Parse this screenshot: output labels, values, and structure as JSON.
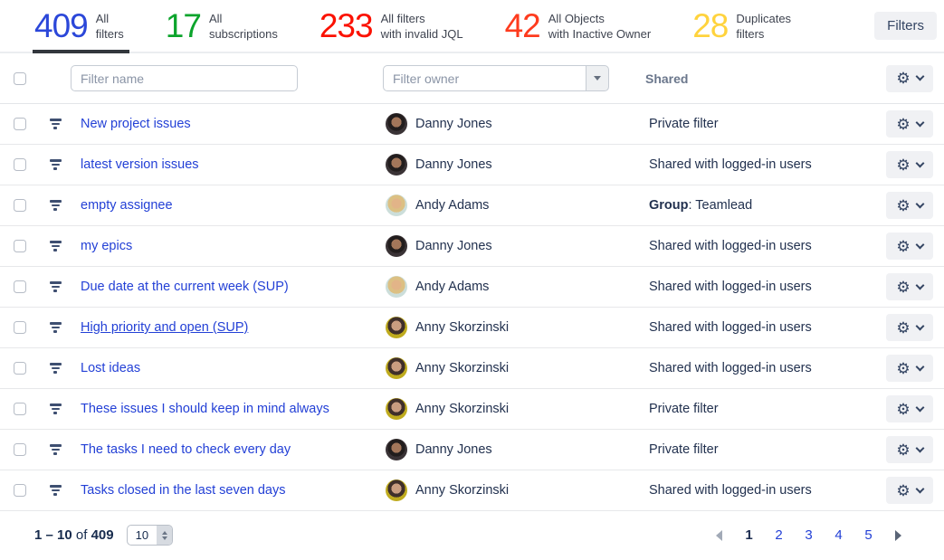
{
  "stats": [
    {
      "value": "409",
      "label_lines": [
        "All",
        "filters"
      ],
      "color": "#2b47d9",
      "active": true
    },
    {
      "value": "17",
      "label_lines": [
        "All",
        "subscriptions"
      ],
      "color": "#0ca42c",
      "active": false
    },
    {
      "value": "233",
      "label_lines": [
        "All filters",
        "with invalid JQL"
      ],
      "color": "#fb1100",
      "active": false
    },
    {
      "value": "42",
      "label_lines": [
        "All Objects",
        "with Inactive Owner"
      ],
      "color": "#fe3b1e",
      "active": false
    },
    {
      "value": "28",
      "label_lines": [
        "Duplicates",
        "filters"
      ],
      "color": "#ffd33d",
      "active": false
    }
  ],
  "filters_button": {
    "label": "Filters"
  },
  "owners": {
    "danny": {
      "name": "Danny Jones",
      "bg": "#3a3336",
      "hair": "#221d1d",
      "skin": "#a3765a"
    },
    "andy": {
      "name": "Andy Adams",
      "bg": "#ccdeda",
      "hair": "#dcc083",
      "skin": "#e2b488"
    },
    "anny": {
      "name": "Anny Skorzinski",
      "bg": "#bfab1e",
      "hair": "#3f2f2a",
      "skin": "#c99d80"
    }
  },
  "table": {
    "filter_name_placeholder": "Filter name",
    "filter_owner_placeholder": "Filter owner",
    "shared_header": "Shared",
    "rows": [
      {
        "name": "New project issues",
        "owner": "danny",
        "shared_prefix": "",
        "shared": "Private filter",
        "underlined": false
      },
      {
        "name": "latest version issues",
        "owner": "danny",
        "shared_prefix": "",
        "shared": "Shared with logged-in users",
        "underlined": false
      },
      {
        "name": "empty assignee",
        "owner": "andy",
        "shared_prefix": "Group",
        "shared": ": Teamlead",
        "underlined": false
      },
      {
        "name": "my epics",
        "owner": "danny",
        "shared_prefix": "",
        "shared": "Shared with logged-in users",
        "underlined": false
      },
      {
        "name": "Due date at the current week (SUP)",
        "owner": "andy",
        "shared_prefix": "",
        "shared": "Shared with logged-in users",
        "underlined": false
      },
      {
        "name": "High priority and open (SUP)",
        "owner": "anny",
        "shared_prefix": "",
        "shared": "Shared with logged-in users",
        "underlined": true
      },
      {
        "name": "Lost ideas",
        "owner": "anny",
        "shared_prefix": "",
        "shared": "Shared with logged-in users",
        "underlined": false
      },
      {
        "name": "These issues I should keep in mind always",
        "owner": "anny",
        "shared_prefix": "",
        "shared": "Private filter",
        "underlined": false
      },
      {
        "name": "The tasks I need to check every day",
        "owner": "danny",
        "shared_prefix": "",
        "shared": "Private filter",
        "underlined": false
      },
      {
        "name": "Tasks closed in the last seven days",
        "owner": "anny",
        "shared_prefix": "",
        "shared": "Shared with logged-in users",
        "underlined": false
      }
    ]
  },
  "footer": {
    "range": "1 – 10",
    "of_label": "of",
    "total": "409",
    "page_size": "10",
    "pages": [
      "1",
      "2",
      "3",
      "4",
      "5"
    ],
    "current_page": "1"
  }
}
